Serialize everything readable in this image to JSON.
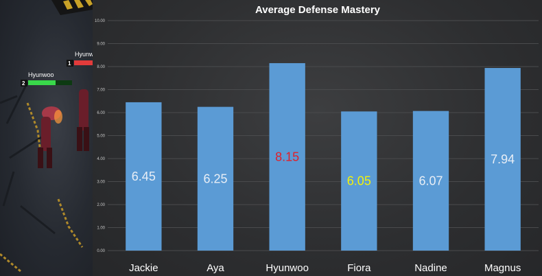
{
  "game": {
    "players": [
      {
        "name": "Hyunwoo",
        "rank": "1",
        "bar_color": "#e23b3b"
      },
      {
        "name": "Hyunwoo",
        "rank": "2",
        "bar_color": "#39d84a"
      }
    ]
  },
  "chart_data": {
    "type": "bar",
    "title": "Average Defense Mastery",
    "xlabel": "",
    "ylabel": "",
    "categories": [
      "Jackie",
      "Aya",
      "Hyunwoo",
      "Fiora",
      "Nadine",
      "Magnus"
    ],
    "values": [
      6.45,
      6.25,
      8.15,
      6.05,
      6.07,
      7.94
    ],
    "data_labels": [
      "6.45",
      "6.25",
      "8.15",
      "6.05",
      "6.07",
      "7.94"
    ],
    "label_colors": [
      "#e8eef6",
      "#e8eef6",
      "#e0202a",
      "#f2f20a",
      "#e8eef6",
      "#e8eef6"
    ],
    "bar_color": "#5b9bd5",
    "ylim": [
      0,
      10
    ],
    "yticks": [
      "0.00",
      "1.00",
      "2.00",
      "3.00",
      "4.00",
      "5.00",
      "6.00",
      "7.00",
      "8.00",
      "9.00",
      "10.00"
    ],
    "grid": true,
    "legend": "none"
  }
}
